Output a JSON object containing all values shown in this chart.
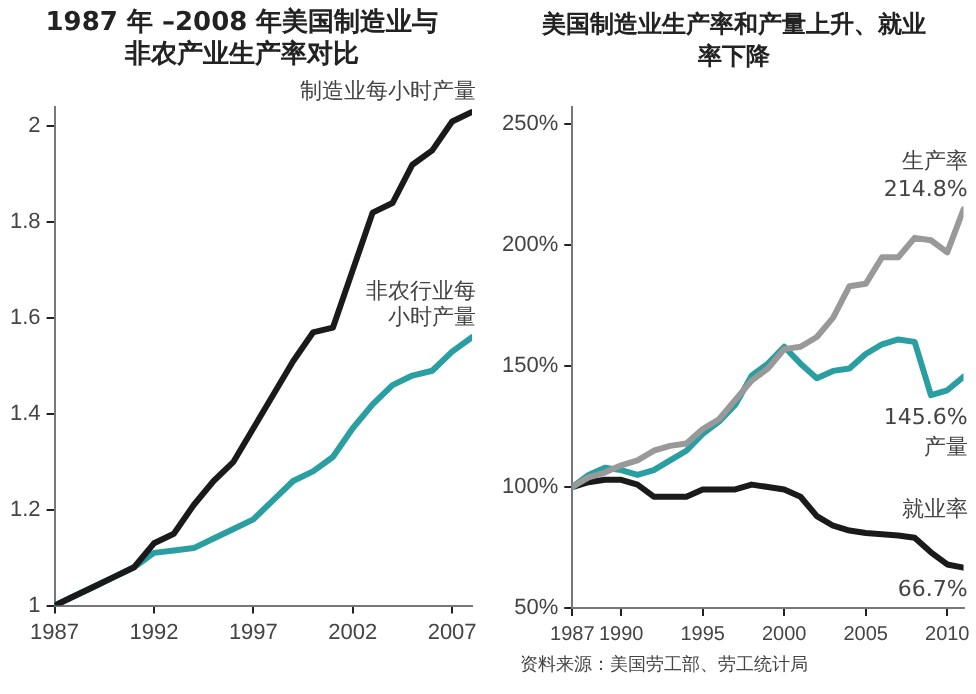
{
  "chart_data": [
    {
      "type": "line",
      "title": "1987 年 –2008 年美国制造业与非农产业生产率对比",
      "x": [
        1987,
        1988,
        1989,
        1990,
        1991,
        1992,
        1993,
        1994,
        1995,
        1996,
        1997,
        1998,
        1999,
        2000,
        2001,
        2002,
        2003,
        2004,
        2005,
        2006,
        2007,
        2008
      ],
      "series": [
        {
          "name": "制造业每小时产量",
          "color": "#1a1a1a",
          "values": [
            1.0,
            1.02,
            1.04,
            1.06,
            1.08,
            1.13,
            1.15,
            1.21,
            1.26,
            1.3,
            1.37,
            1.44,
            1.51,
            1.57,
            1.58,
            1.7,
            1.82,
            1.84,
            1.92,
            1.95,
            2.01,
            2.03
          ]
        },
        {
          "name": "非农行业每小时产量",
          "color": "#2a9fa2",
          "values": [
            1.0,
            1.02,
            1.04,
            1.06,
            1.08,
            1.11,
            1.115,
            1.12,
            1.14,
            1.16,
            1.18,
            1.22,
            1.26,
            1.28,
            1.31,
            1.37,
            1.42,
            1.46,
            1.48,
            1.49,
            1.53,
            1.56
          ]
        }
      ],
      "xlim": [
        1987,
        2008
      ],
      "xticks": [
        1987,
        1992,
        1997,
        2002,
        2007
      ],
      "ylim": [
        1,
        2.04
      ],
      "yticks": [
        1,
        1.2,
        1.4,
        1.6,
        1.8,
        2
      ],
      "grid": false,
      "legend": false,
      "marker": "none",
      "line_style": "solid"
    },
    {
      "type": "line",
      "title": "美国制造业生产率和产量上升、就业率下降",
      "x": [
        1987,
        1988,
        1989,
        1990,
        1991,
        1992,
        1993,
        1994,
        1995,
        1996,
        1997,
        1998,
        1999,
        2000,
        2001,
        2002,
        2003,
        2004,
        2005,
        2006,
        2007,
        2008,
        2009,
        2010,
        2011
      ],
      "series": [
        {
          "name": "生产率",
          "color": "#999999",
          "values": [
            100,
            104,
            106,
            109,
            111,
            115,
            117,
            118,
            124,
            128,
            136,
            144,
            149,
            157,
            158,
            162,
            170,
            183,
            184,
            195,
            195,
            203,
            202,
            197,
            214.8
          ],
          "value_labels": [
            null,
            null,
            null,
            null,
            null,
            null,
            null,
            null,
            null,
            null,
            null,
            null,
            null,
            null,
            null,
            null,
            null,
            null,
            null,
            null,
            null,
            null,
            null,
            null,
            "214.8%"
          ]
        },
        {
          "name": "产量",
          "color": "#2a9fa2",
          "values": [
            100,
            105,
            108,
            107,
            105,
            107,
            111,
            115,
            122,
            127,
            134,
            146,
            151,
            158,
            151,
            145,
            148,
            149,
            155,
            159,
            161,
            160,
            138,
            140,
            145.6
          ],
          "value_labels": [
            null,
            null,
            null,
            null,
            null,
            null,
            null,
            null,
            null,
            null,
            null,
            null,
            null,
            null,
            null,
            null,
            null,
            null,
            null,
            null,
            null,
            null,
            null,
            null,
            "145.6%"
          ]
        },
        {
          "name": "就业率",
          "color": "#1a1a1a",
          "values": [
            100,
            102,
            103,
            103,
            101,
            96,
            96,
            96,
            99,
            99,
            99,
            101,
            100,
            99,
            96,
            88,
            84,
            82,
            81,
            80.5,
            80,
            79,
            73,
            68,
            66.7
          ],
          "value_labels": [
            null,
            null,
            null,
            null,
            null,
            null,
            null,
            null,
            null,
            null,
            null,
            null,
            null,
            null,
            null,
            null,
            null,
            null,
            null,
            null,
            null,
            null,
            null,
            null,
            "66.7%"
          ]
        }
      ],
      "xlim": [
        1987,
        2011
      ],
      "xticks": [
        1987,
        1990,
        1995,
        2000,
        2005,
        2010
      ],
      "ylim": [
        50,
        257
      ],
      "yticks": [
        {
          "value": 50,
          "label": "50%"
        },
        {
          "value": 100,
          "label": "100%"
        },
        {
          "value": 150,
          "label": "150%"
        },
        {
          "value": 200,
          "label": "200%"
        },
        {
          "value": 250,
          "label": "250%"
        }
      ],
      "grid": false,
      "legend": false,
      "marker": "none",
      "line_style": "solid",
      "annotations": [
        "资料来源：美国劳工部、劳工统计局"
      ]
    }
  ]
}
